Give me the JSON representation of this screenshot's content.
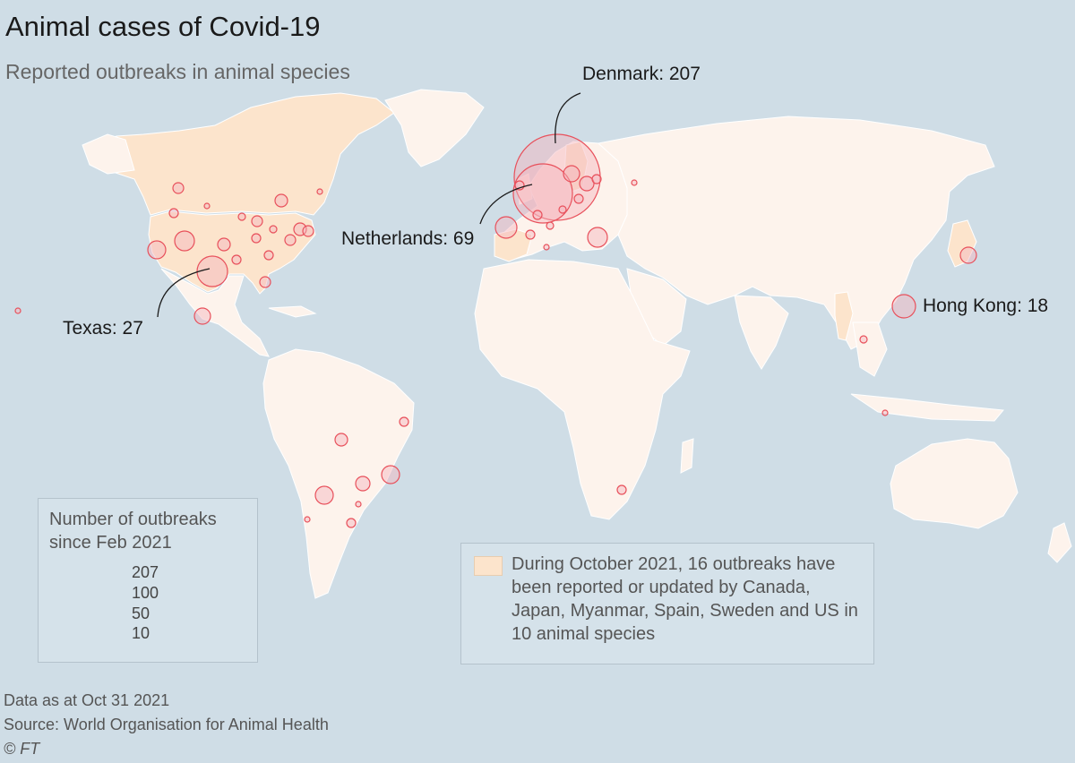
{
  "title": "Animal cases of Covid-19",
  "subtitle": "Reported outbreaks in animal species",
  "callouts": {
    "denmark": "Denmark: 207",
    "netherlands": "Netherlands: 69",
    "texas": "Texas: 27",
    "hong_kong": "Hong Kong: 18"
  },
  "legend": {
    "title_line1": "Number of outbreaks",
    "title_line2": "since Feb 2021",
    "values": [
      "207",
      "100",
      "50",
      "10"
    ]
  },
  "note": {
    "text": "During October 2021, 16 outbreaks have been reported or updated by Canada, Japan, Myanmar, Spain, Sweden and US in 10 animal species",
    "highlight_color": "#fce4cc"
  },
  "footer": {
    "data_date": "Data as at Oct 31 2021",
    "source": "Source: World Organisation for Animal Health",
    "copyright": "© FT"
  },
  "colors": {
    "ocean": "#cfdde6",
    "land": "#fdf3ec",
    "highlight_land": "#fce4cc",
    "bubble_stroke": "#e8505b",
    "bubble_fill": "#f3b4bc"
  },
  "chart_data": {
    "type": "bubble-map",
    "labelled_values": [
      {
        "place": "Denmark",
        "value": 207
      },
      {
        "place": "Netherlands",
        "value": 69
      },
      {
        "place": "Texas",
        "value": 27
      },
      {
        "place": "Hong Kong",
        "value": 18
      }
    ],
    "legend_scale": [
      207,
      100,
      50,
      10
    ],
    "highlighted_countries": [
      "Canada",
      "Japan",
      "Myanmar",
      "Spain",
      "Sweden",
      "US"
    ]
  }
}
